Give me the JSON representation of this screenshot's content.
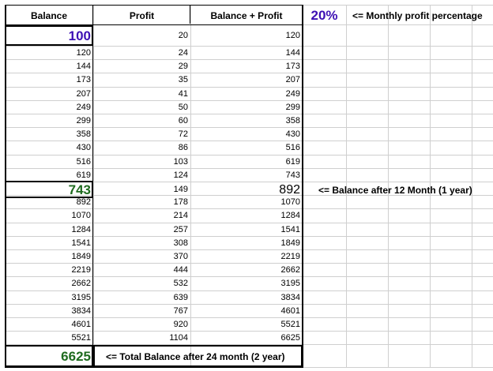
{
  "headers": {
    "balance": "Balance",
    "profit": "Profit",
    "balance_plus_profit": "Balance + Profit"
  },
  "monthly_profit_percentage": "20%",
  "monthly_profit_note": "<= Monthly profit percentage",
  "start_row": {
    "balance": "100",
    "profit": "20",
    "total": "120"
  },
  "rows": [
    [
      "120",
      "24",
      "144"
    ],
    [
      "144",
      "29",
      "173"
    ],
    [
      "173",
      "35",
      "207"
    ],
    [
      "207",
      "41",
      "249"
    ],
    [
      "249",
      "50",
      "299"
    ],
    [
      "299",
      "60",
      "358"
    ],
    [
      "358",
      "72",
      "430"
    ],
    [
      "430",
      "86",
      "516"
    ],
    [
      "516",
      "103",
      "619"
    ],
    [
      "619",
      "124",
      "743"
    ],
    [
      "743",
      "149",
      "892"
    ],
    [
      "892",
      "178",
      "1070"
    ],
    [
      "1070",
      "214",
      "1284"
    ],
    [
      "1284",
      "257",
      "1541"
    ],
    [
      "1541",
      "308",
      "1849"
    ],
    [
      "1849",
      "370",
      "2219"
    ],
    [
      "2219",
      "444",
      "2662"
    ],
    [
      "2662",
      "532",
      "3195"
    ],
    [
      "3195",
      "639",
      "3834"
    ],
    [
      "3834",
      "767",
      "4601"
    ],
    [
      "4601",
      "920",
      "5521"
    ],
    [
      "5521",
      "1104",
      "6625"
    ]
  ],
  "year1_note": "<= Balance after 12 Month (1 year)",
  "final_balance": "6625",
  "final_note": "<= Total Balance after 24 month (2 year)",
  "colors": {
    "accent_blue": "#3d10b4",
    "accent_green": "#1f6b1f",
    "gridline": "#cfcfcf"
  }
}
